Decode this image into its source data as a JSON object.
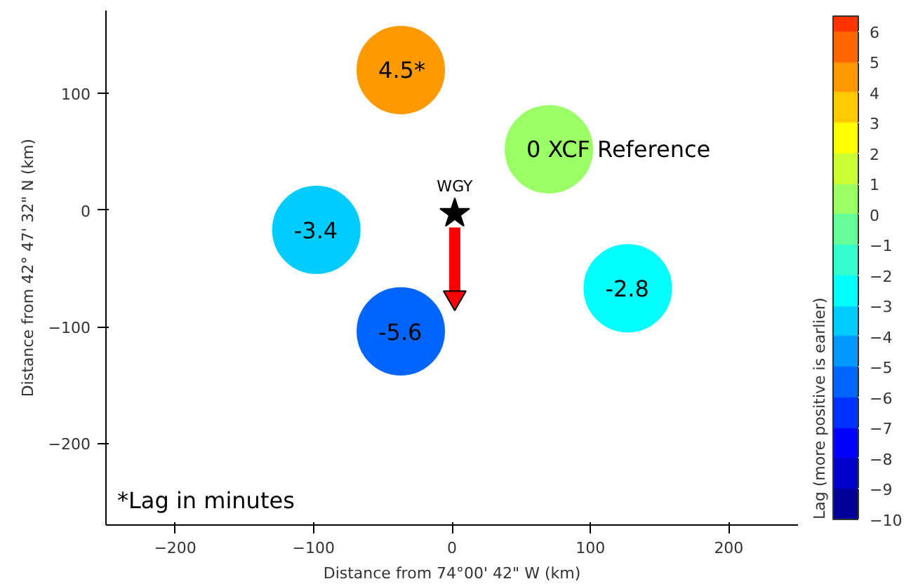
{
  "chart_data": {
    "type": "scatter",
    "xlabel": "Distance from 74°00' 42\" W (km)",
    "ylabel": "Distance from 42° 47' 32\" N (km)",
    "clabel": "Lag (more positive is earlier)",
    "xlim": [
      -250,
      250
    ],
    "ylim": [
      -270,
      171
    ],
    "xticks": [
      -200,
      -100,
      0,
      100,
      200
    ],
    "yticks": [
      -200,
      -100,
      0,
      100
    ],
    "clim": [
      -10,
      6.5
    ],
    "cticks": [
      -10,
      -9,
      -8,
      -7,
      -6,
      -5,
      -4,
      -3,
      -2,
      -1,
      0,
      1,
      2,
      3,
      4,
      5,
      6
    ],
    "grid": false,
    "series": [
      {
        "marker": "circle",
        "x": [
          -37,
          70,
          -98,
          -37,
          127
        ],
        "values": [
          120,
          52,
          -17,
          -104,
          -67
        ],
        "cvalues": [
          4.5,
          0,
          -3.4,
          -5.6,
          -2.8
        ],
        "colors": [
          "#ff9900",
          "#99ff66",
          "#00ccff",
          "#0066ff",
          "#00ffff"
        ]
      },
      {
        "type": "scatter",
        "marker": "star",
        "name": "WGY",
        "x": [
          2
        ],
        "values": [
          -3
        ],
        "color": "#000000"
      },
      {
        "type": "line",
        "marker": "triangle",
        "x": [
          2,
          2
        ],
        "values": [
          -15,
          -75
        ],
        "color": "#ff0000"
      }
    ],
    "annotations": [
      {
        "text": "4.5*",
        "x": -37,
        "y": 120
      },
      {
        "text": "0 XCF Reference",
        "x": 70,
        "y": 52
      },
      {
        "text": "-3.4",
        "x": -98,
        "y": -17
      },
      {
        "text": "-5.6",
        "x": -37,
        "y": -104
      },
      {
        "text": "-2.8",
        "x": 127,
        "y": -67
      },
      "*Lag in minutes"
    ]
  }
}
